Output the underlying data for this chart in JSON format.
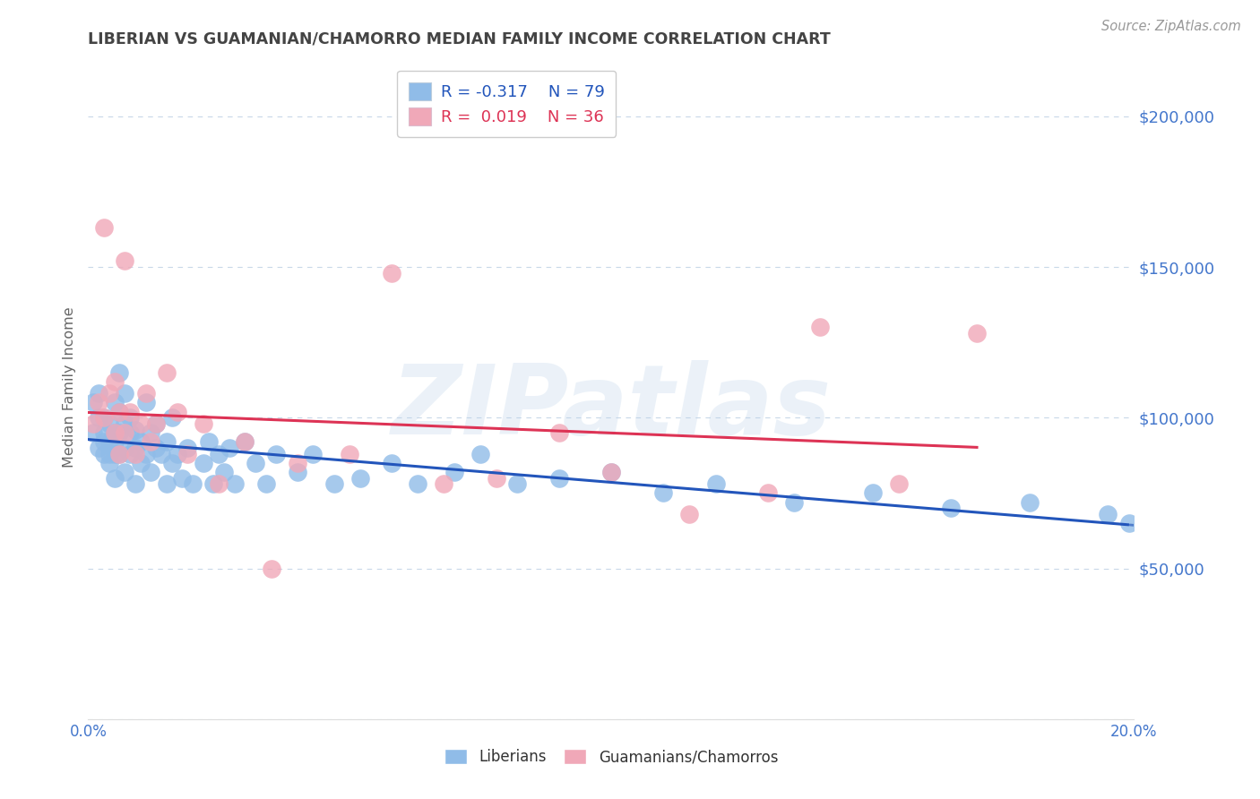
{
  "title": "LIBERIAN VS GUAMANIAN/CHAMORRO MEDIAN FAMILY INCOME CORRELATION CHART",
  "source": "Source: ZipAtlas.com",
  "ylabel": "Median Family Income",
  "xlim": [
    0.0,
    0.2
  ],
  "ylim": [
    0,
    220000
  ],
  "yticks": [
    0,
    50000,
    100000,
    150000,
    200000
  ],
  "ytick_labels": [
    "",
    "$50,000",
    "$100,000",
    "$150,000",
    "$200,000"
  ],
  "xticks": [
    0.0,
    0.05,
    0.1,
    0.15,
    0.2
  ],
  "background_color": "#ffffff",
  "grid_color": "#c8d8e8",
  "watermark": "ZIPatlas",
  "watermark_color": "#b8d0e8",
  "liberian_color": "#90bce8",
  "guamanian_color": "#f0a8b8",
  "liberian_line_color": "#2255bb",
  "guamanian_line_color": "#dd3355",
  "axis_label_color": "#4477cc",
  "title_color": "#444444",
  "liberian_R": -0.317,
  "liberian_N": 79,
  "guamanian_R": 0.019,
  "guamanian_N": 36,
  "liberian_x": [
    0.001,
    0.001,
    0.002,
    0.002,
    0.002,
    0.003,
    0.003,
    0.003,
    0.003,
    0.004,
    0.004,
    0.004,
    0.004,
    0.005,
    0.005,
    0.005,
    0.005,
    0.005,
    0.006,
    0.006,
    0.006,
    0.006,
    0.007,
    0.007,
    0.007,
    0.007,
    0.008,
    0.008,
    0.008,
    0.009,
    0.009,
    0.009,
    0.01,
    0.01,
    0.011,
    0.011,
    0.012,
    0.012,
    0.013,
    0.013,
    0.014,
    0.015,
    0.015,
    0.016,
    0.016,
    0.017,
    0.018,
    0.019,
    0.02,
    0.022,
    0.023,
    0.024,
    0.025,
    0.026,
    0.027,
    0.028,
    0.03,
    0.032,
    0.034,
    0.036,
    0.04,
    0.043,
    0.047,
    0.052,
    0.058,
    0.063,
    0.07,
    0.075,
    0.082,
    0.09,
    0.1,
    0.11,
    0.12,
    0.135,
    0.15,
    0.165,
    0.18,
    0.195,
    0.199
  ],
  "liberian_y": [
    105000,
    95000,
    100000,
    90000,
    108000,
    88000,
    95000,
    100000,
    92000,
    85000,
    92000,
    98000,
    88000,
    80000,
    88000,
    95000,
    105000,
    92000,
    88000,
    95000,
    102000,
    115000,
    82000,
    90000,
    98000,
    108000,
    88000,
    95000,
    100000,
    78000,
    90000,
    96000,
    85000,
    92000,
    88000,
    105000,
    82000,
    95000,
    90000,
    98000,
    88000,
    78000,
    92000,
    85000,
    100000,
    88000,
    80000,
    90000,
    78000,
    85000,
    92000,
    78000,
    88000,
    82000,
    90000,
    78000,
    92000,
    85000,
    78000,
    88000,
    82000,
    88000,
    78000,
    80000,
    85000,
    78000,
    82000,
    88000,
    78000,
    80000,
    82000,
    75000,
    78000,
    72000,
    75000,
    70000,
    72000,
    68000,
    65000
  ],
  "guamanian_x": [
    0.001,
    0.002,
    0.003,
    0.003,
    0.004,
    0.005,
    0.005,
    0.006,
    0.006,
    0.007,
    0.007,
    0.008,
    0.009,
    0.01,
    0.011,
    0.012,
    0.013,
    0.015,
    0.017,
    0.019,
    0.022,
    0.025,
    0.03,
    0.035,
    0.04,
    0.05,
    0.058,
    0.068,
    0.078,
    0.09,
    0.1,
    0.115,
    0.13,
    0.14,
    0.155,
    0.17
  ],
  "guamanian_y": [
    98000,
    105000,
    100000,
    163000,
    108000,
    95000,
    112000,
    102000,
    88000,
    95000,
    152000,
    102000,
    88000,
    98000,
    108000,
    92000,
    98000,
    115000,
    102000,
    88000,
    98000,
    78000,
    92000,
    50000,
    85000,
    88000,
    148000,
    78000,
    80000,
    95000,
    82000,
    68000,
    75000,
    130000,
    78000,
    128000
  ]
}
